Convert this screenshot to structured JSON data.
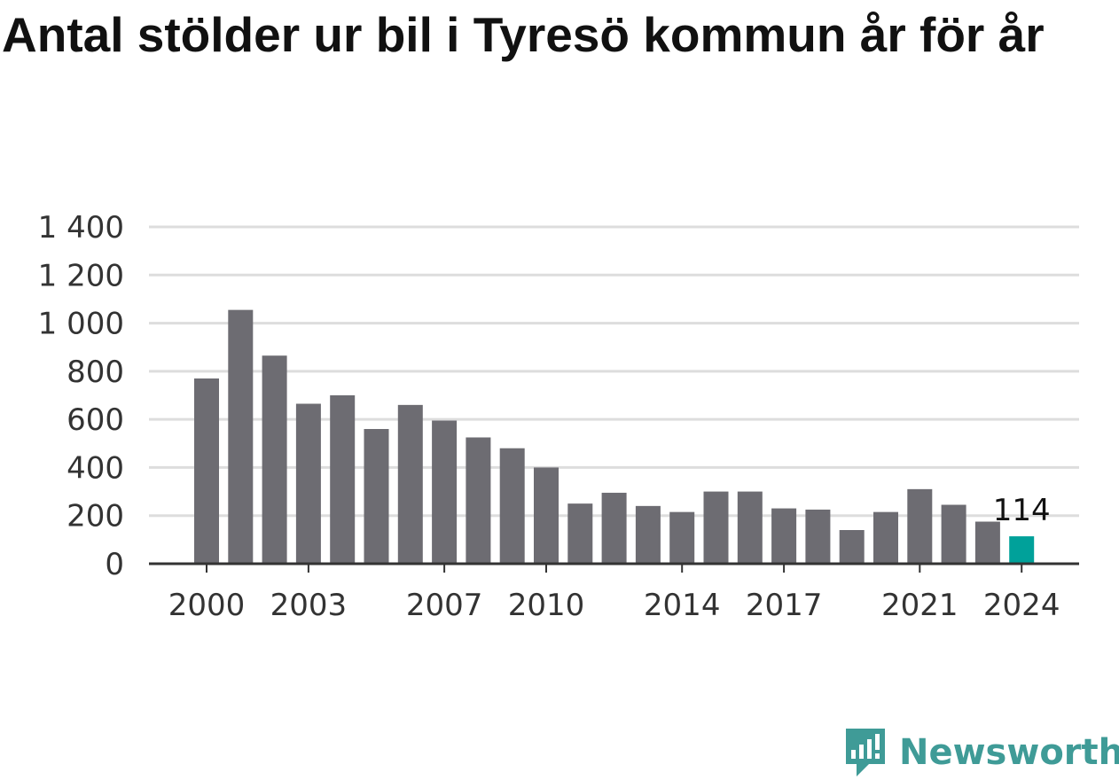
{
  "title": "Antal stölder ur bil i Tyresö kommun år för år",
  "brand": {
    "name": "Newsworthy",
    "color": "#3f9b97"
  },
  "colors": {
    "bar": "#6d6c72",
    "highlight": "#00a19a",
    "grid": "#dddddd",
    "axis": "#333333"
  },
  "chart_data": {
    "type": "bar",
    "categories": [
      "2000",
      "2001",
      "2002",
      "2003",
      "2004",
      "2005",
      "2006",
      "2007",
      "2008",
      "2009",
      "2010",
      "2011",
      "2012",
      "2013",
      "2014",
      "2015",
      "2016",
      "2017",
      "2018",
      "2019",
      "2020",
      "2021",
      "2022",
      "2023",
      "2024"
    ],
    "values": [
      770,
      1055,
      865,
      665,
      700,
      560,
      660,
      595,
      525,
      480,
      400,
      250,
      295,
      240,
      215,
      300,
      300,
      230,
      225,
      140,
      215,
      310,
      245,
      175,
      114
    ],
    "x_tick_labels": [
      "2000",
      "2003",
      "2007",
      "2010",
      "2014",
      "2017",
      "2021",
      "2024"
    ],
    "y_ticks": [
      0,
      200,
      400,
      600,
      800,
      1000,
      1200,
      1400
    ],
    "y_tick_labels": [
      "0",
      "200",
      "400",
      "600",
      "800",
      "1 000",
      "1 200",
      "1 400"
    ],
    "ylim": [
      0,
      1400
    ],
    "highlight_category": "2024",
    "annotations": [
      {
        "category": "2024",
        "text": "114"
      }
    ],
    "grid": true
  }
}
